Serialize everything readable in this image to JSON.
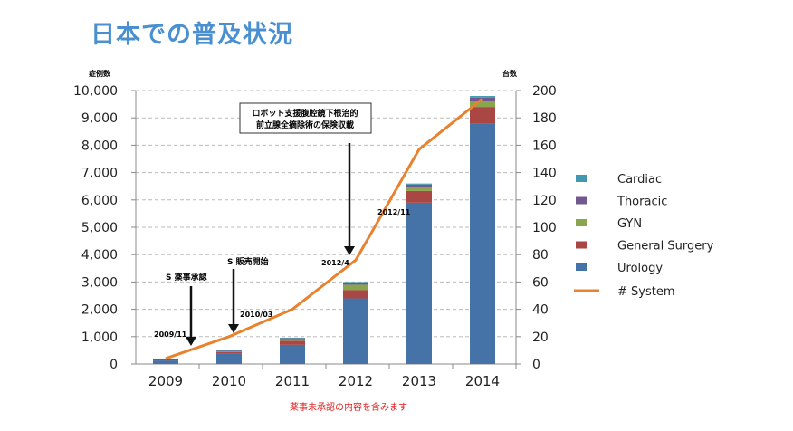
{
  "title": "日本での普及状況",
  "footnote": "薬事未承認の内容を含みます",
  "chart_data": {
    "type": "bar",
    "stacked": true,
    "categories": [
      "2009",
      "2010",
      "2011",
      "2012",
      "2013",
      "2014"
    ],
    "ylabel": "症例数",
    "y2label": "台数",
    "ylim": [
      0,
      10000
    ],
    "y2lim": [
      0,
      200
    ],
    "yticks": [
      "0",
      "1,000",
      "2,000",
      "3,000",
      "4,000",
      "5,000",
      "6,000",
      "7,000",
      "8,000",
      "9,000",
      "10,000"
    ],
    "y2ticks": [
      "0",
      "20",
      "40",
      "60",
      "80",
      "100",
      "120",
      "140",
      "160",
      "180",
      "200"
    ],
    "grid": true,
    "legend": "right",
    "series": [
      {
        "name": "Urology",
        "color": "#4572a7",
        "values": [
          130,
          370,
          700,
          2400,
          5900,
          8780
        ]
      },
      {
        "name": "General Surgery",
        "color": "#aa4643",
        "values": [
          40,
          60,
          150,
          300,
          430,
          620
        ]
      },
      {
        "name": "GYN",
        "color": "#89a54e",
        "values": [
          15,
          35,
          60,
          200,
          150,
          200
        ]
      },
      {
        "name": "Thoracic",
        "color": "#71588f",
        "values": [
          5,
          15,
          30,
          70,
          80,
          140
        ]
      },
      {
        "name": "Cardiac",
        "color": "#4198af",
        "values": [
          10,
          20,
          20,
          30,
          40,
          60
        ]
      }
    ],
    "line": {
      "name": "# System",
      "color": "#e8822e",
      "axis": "right",
      "values": [
        4,
        20,
        40,
        76,
        157,
        194
      ]
    },
    "annotations": [
      {
        "text": "ロボット支援腹腔鏡下根治的",
        "text2": "前立腺全摘除術の保険収載"
      },
      {
        "text": "S 薬事承認"
      },
      {
        "text": "S 販売開始"
      },
      {
        "text": "2009/11"
      },
      {
        "text": "2010/03"
      },
      {
        "text": "2012/4"
      },
      {
        "text": "2012/11"
      }
    ]
  }
}
